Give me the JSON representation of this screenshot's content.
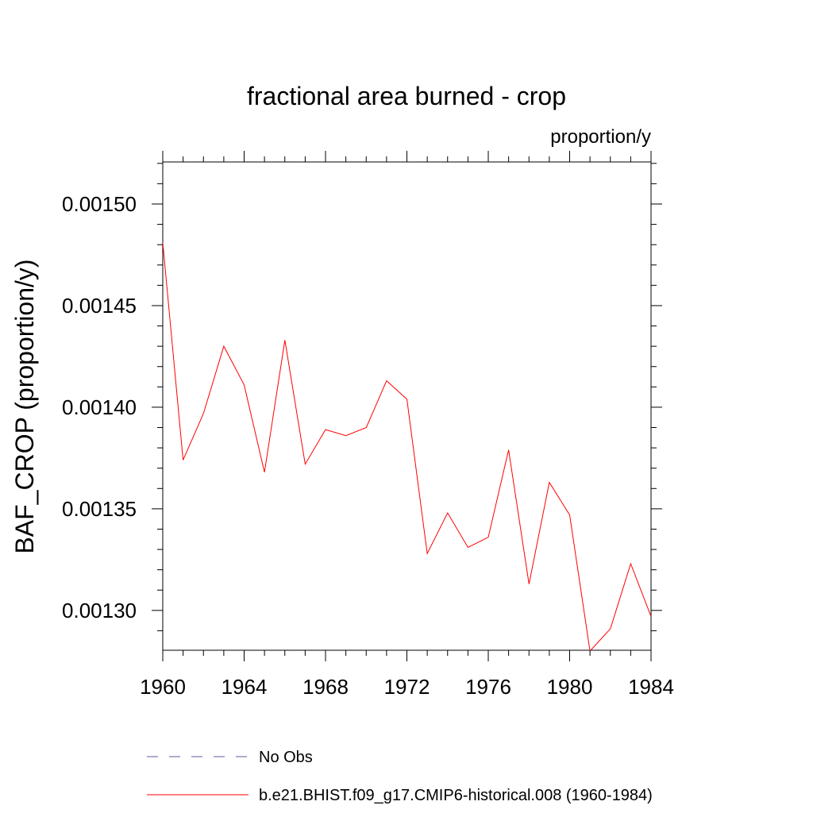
{
  "chart_data": {
    "type": "line",
    "title": "fractional area burned - crop",
    "units_label": "proportion/y",
    "ylabel": "BAF_CROP  (proportion/y)",
    "xlabel": "",
    "xlim": [
      1960,
      1984
    ],
    "ylim": [
      0.0012804,
      0.0015207
    ],
    "xticks": [
      "1960",
      "1964",
      "1968",
      "1972",
      "1976",
      "1980",
      "1984"
    ],
    "yticks": [
      "0.00130",
      "0.00135",
      "0.00140",
      "0.00145",
      "0.00150"
    ],
    "grid": false,
    "legend_position": "bottom",
    "colors": {
      "axis": "#000000"
    },
    "series": [
      {
        "name": "No Obs",
        "color": "#5a5aa0",
        "dash": "dashed",
        "x": [],
        "y": []
      },
      {
        "name": "b.e21.BHIST.f09_g17.CMIP6-historical.008 (1960-1984)",
        "color": "#ff0000",
        "dash": "solid",
        "x": [
          1960,
          1961,
          1962,
          1963,
          1964,
          1965,
          1966,
          1967,
          1968,
          1969,
          1970,
          1971,
          1972,
          1973,
          1974,
          1975,
          1976,
          1977,
          1978,
          1979,
          1980,
          1981,
          1982,
          1983,
          1984
        ],
        "y": [
          0.001481,
          0.001374,
          0.001397,
          0.00143,
          0.001411,
          0.001368,
          0.001433,
          0.001372,
          0.001389,
          0.001386,
          0.00139,
          0.001413,
          0.001404,
          0.001328,
          0.001348,
          0.001331,
          0.001336,
          0.001379,
          0.001313,
          0.001363,
          0.001347,
          0.00128,
          0.001291,
          0.001323,
          0.001297
        ]
      }
    ]
  }
}
